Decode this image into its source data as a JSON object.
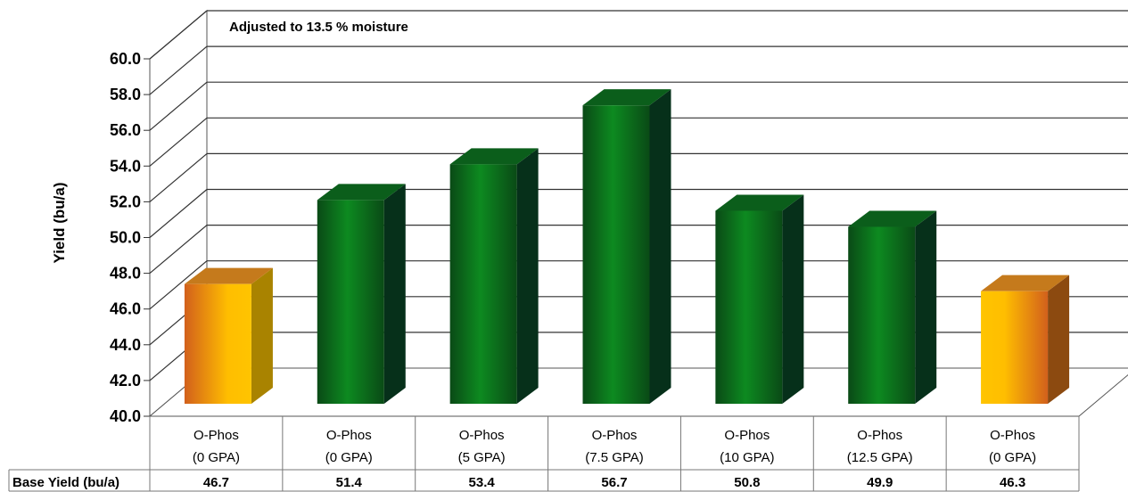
{
  "chart_data": {
    "type": "bar",
    "annotation": "Adjusted to 13.5 % moisture",
    "ylabel": "Yield (bu/a)",
    "ylim": [
      40,
      60
    ],
    "ytick_step": 2,
    "grid": true,
    "three_d": true,
    "categories": [
      [
        "O-Phos",
        "(0 GPA)"
      ],
      [
        "O-Phos",
        "(0 GPA)"
      ],
      [
        "O-Phos",
        "(5 GPA)"
      ],
      [
        "O-Phos",
        "(7.5 GPA)"
      ],
      [
        "O-Phos",
        "(10 GPA)"
      ],
      [
        "O-Phos",
        "(12.5 GPA)"
      ],
      [
        "O-Phos",
        "(0 GPA)"
      ]
    ],
    "values": [
      46.7,
      51.4,
      53.4,
      56.7,
      50.8,
      49.9,
      46.3
    ],
    "table": {
      "row_label": "Base Yield (bu/a)",
      "values": [
        "46.7",
        "51.4",
        "53.4",
        "56.7",
        "50.8",
        "49.9",
        "46.3"
      ]
    },
    "bar_styles": [
      "orange",
      "green",
      "green",
      "green",
      "green",
      "green",
      "orange"
    ],
    "colors": {
      "green_light": "#0c8a1e",
      "green_dark": "#0a3d14",
      "green_side": "#06301a",
      "green_top": "#0b5e1b",
      "orange_light": "#ffc000",
      "orange_dark": "#d4641a",
      "orange_side": "#8c4a10",
      "orange_top": "#c57a1c"
    }
  }
}
